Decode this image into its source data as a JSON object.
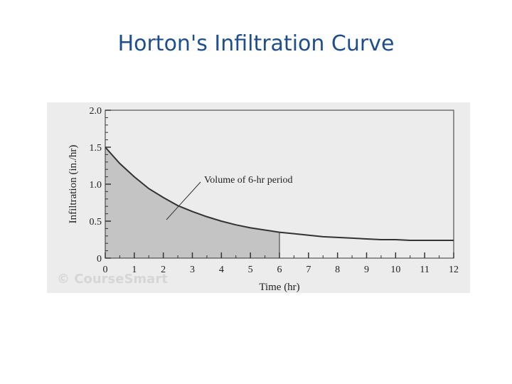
{
  "title": "Horton's Infiltration Curve",
  "chart_data": {
    "type": "line",
    "xlabel": "Time (hr)",
    "ylabel": "Infiltration (in./hr)",
    "annotation": "Volume of 6-hr period",
    "watermark": "© CourseSmart",
    "x": [
      0,
      0.5,
      1,
      1.5,
      2,
      2.5,
      3,
      3.5,
      4,
      4.5,
      5,
      5.5,
      6,
      6.5,
      7,
      7.5,
      8,
      8.5,
      9,
      9.5,
      10,
      10.5,
      11,
      11.5,
      12
    ],
    "values": [
      1.5,
      1.28,
      1.1,
      0.94,
      0.82,
      0.71,
      0.63,
      0.56,
      0.5,
      0.45,
      0.41,
      0.38,
      0.35,
      0.33,
      0.31,
      0.29,
      0.28,
      0.27,
      0.26,
      0.25,
      0.25,
      0.24,
      0.24,
      0.24,
      0.24
    ],
    "color": "#333333",
    "shade_color": "#c4c4c4",
    "shade_to": 6,
    "xlim": [
      0,
      12
    ],
    "xticks": [
      0,
      1,
      2,
      3,
      4,
      5,
      6,
      7,
      8,
      9,
      10,
      11,
      12
    ],
    "ylim": [
      0,
      2
    ],
    "yticks": [
      0,
      {
        "value": 0.5,
        "label": "0.5"
      },
      {
        "value": 1,
        "label": "1.0"
      },
      {
        "value": 1.5,
        "label": "1.5"
      },
      {
        "value": 2,
        "label": "2.0"
      }
    ]
  }
}
